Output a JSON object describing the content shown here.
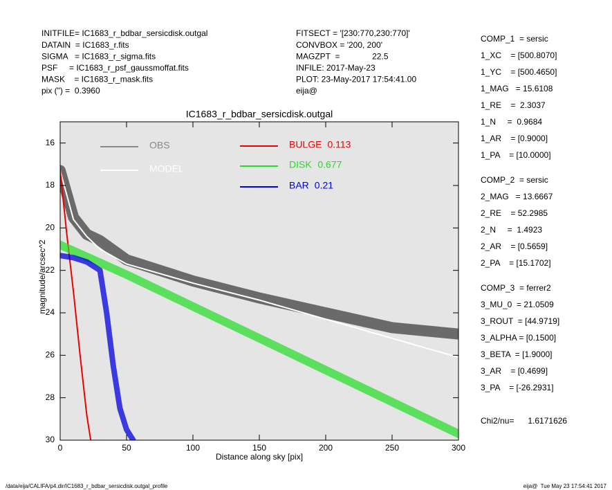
{
  "header": {
    "left": [
      "INITFILE= IC1683_r_bdbar_sersicdisk.outgal",
      "DATAIN  = IC1683_r.fits",
      "SIGMA   = IC1683_r_sigma.fits",
      "PSF     = IC1683_r_psf_gaussmoffat.fits",
      "MASK    = IC1683_r_mask.fits",
      "pix (\") =  0.3960"
    ],
    "middle": [
      "FITSECT = '[230:770,230:770]'",
      "CONVBOX = '200, 200'",
      "MAGZPT  =              22.5",
      "INFILE: 2017-May-23",
      "PLOT: 23-May-2017 17:54:41.00",
      "eija@"
    ]
  },
  "parameters": [
    [
      "COMP_1  = sersic",
      "1_XC    = [500.8070]",
      "1_YC    = [500.4650]",
      "1_MAG   = 15.6108",
      "1_RE    =  2.3037",
      "1_N     =  0.9684",
      "1_AR    = [0.9000]",
      "1_PA    = [10.0000]"
    ],
    [
      "COMP_2  = sersic",
      "2_MAG   = 13.6667",
      "2_RE    = 52.2985",
      "2_N     =  1.4923",
      "2_AR    = [0.5659]",
      "2_PA    = [15.1702]"
    ],
    [
      "COMP_3  = ferrer2",
      "3_MU_0  = 21.0509",
      "3_ROUT  = [44.9719]",
      "3_ALPHA = [0.1500]",
      "3_BETA  = [1.9000]",
      "3_AR    = [0.4699]",
      "3_PA    = [-26.2931]"
    ],
    [
      "Chi2/nu=      1.6171626"
    ]
  ],
  "footer": {
    "left": "/data/eija/CALIFA/p4.dir/IC1683_r_bdbar_sersicdisk.outgal_profile",
    "right": "eija@  Tue May 23 17:54:41 2017"
  },
  "chart_data": {
    "type": "line",
    "title": "IC1683_r_bdbar_sersicdisk.outgal",
    "x_label": "Distance along sky [pix]",
    "y_label": "magnitude/arcsec^2",
    "xlim": [
      0,
      300
    ],
    "xticks": [
      0,
      50,
      100,
      150,
      200,
      250,
      300
    ],
    "ylim": [
      15,
      30
    ],
    "yticks": [
      16,
      18,
      20,
      22,
      24,
      26,
      28,
      30
    ],
    "y_inverted": true,
    "series": [
      {
        "name": "OBS",
        "color": "#555555",
        "x": [
          0,
          10,
          20,
          30,
          50,
          100,
          150,
          200,
          250,
          300
        ],
        "values": [
          17.3,
          19.5,
          20.3,
          20.6,
          21.5,
          22.5,
          23.3,
          24.0,
          24.7,
          25.0
        ]
      },
      {
        "name": "MODEL",
        "color": "#ffffff",
        "x": [
          0,
          10,
          20,
          30,
          50,
          100,
          150,
          200,
          250,
          300
        ],
        "values": [
          17.3,
          19.6,
          20.4,
          21.0,
          21.7,
          22.6,
          23.4,
          24.3,
          25.2,
          26.1
        ]
      },
      {
        "name": "BULGE",
        "fraction": 0.113,
        "color": "#ee0000",
        "x": [
          0,
          2,
          5,
          10,
          15,
          20,
          23
        ],
        "values": [
          17.3,
          18.5,
          20.3,
          23.0,
          26.0,
          28.8,
          30.0
        ]
      },
      {
        "name": "DISK",
        "fraction": 0.677,
        "color": "#22dd22",
        "x": [
          0,
          50,
          100,
          150,
          200,
          250,
          300
        ],
        "values": [
          20.8,
          22.2,
          23.7,
          25.2,
          26.7,
          28.2,
          29.7
        ]
      },
      {
        "name": "BAR",
        "fraction": 0.21,
        "color": "#0000dd",
        "x": [
          0,
          10,
          20,
          30,
          35,
          40,
          45,
          50,
          55
        ],
        "values": [
          21.3,
          21.4,
          21.6,
          22.0,
          24.0,
          26.5,
          28.5,
          29.5,
          30.0
        ]
      }
    ]
  }
}
